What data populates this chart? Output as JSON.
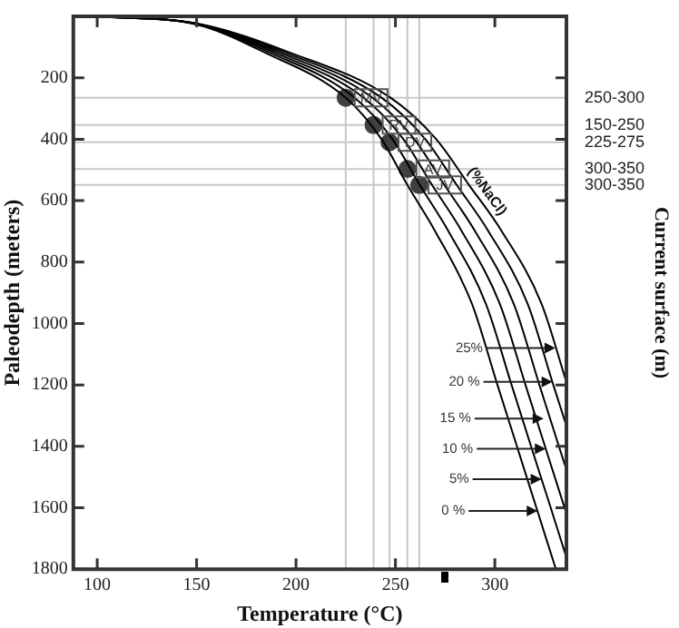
{
  "chart_data": {
    "type": "line",
    "xlabel": "Temperature (°C)",
    "ylabel": "Paleodepth (meters)",
    "y2label": "Current surface (m)",
    "xlim": [
      88,
      336
    ],
    "ylim": [
      1800,
      0
    ],
    "xticks": [
      100,
      150,
      200,
      250,
      300
    ],
    "yticks": [
      200,
      400,
      600,
      800,
      1000,
      1200,
      1400,
      1600,
      1800
    ],
    "grid": false,
    "legend": false,
    "marker": "none",
    "line_style": "solid",
    "series": [
      {
        "color": "#000000",
        "x": [
          100,
          149,
          184,
          225,
          243,
          256,
          270,
          288.5,
          301.3,
          311.1,
          320.9,
          330.7
        ],
        "values": [
          0,
          25,
          117,
          265,
          400,
          549,
          700,
          936,
          1200,
          1400,
          1600,
          1800
        ]
      },
      {
        "color": "#000000",
        "x": [
          100,
          149.5,
          186.5,
          229.5,
          248.5,
          262.2,
          276.7,
          295.5,
          308.4,
          318.2,
          328.1,
          336
        ],
        "values": [
          0,
          25,
          117,
          265,
          400,
          549,
          700,
          936,
          1200,
          1400,
          1600,
          1762
        ]
      },
      {
        "color": "#000000",
        "x": [
          100,
          150,
          189,
          234,
          254,
          268.4,
          283.4,
          302.5,
          315.4,
          325.2,
          336
        ],
        "values": [
          0,
          25,
          117,
          265,
          400,
          549,
          700,
          936,
          1200,
          1400,
          1619
        ]
      },
      {
        "color": "#000000",
        "x": [
          100,
          150.5,
          191.5,
          238.5,
          259.5,
          274.6,
          290.1,
          309.5,
          322.4,
          332.2,
          336
        ],
        "values": [
          0,
          25,
          117,
          265,
          400,
          549,
          700,
          936,
          1200,
          1400,
          1476
        ]
      },
      {
        "color": "#000000",
        "x": [
          100,
          151,
          194,
          243,
          265,
          280.8,
          296.8,
          316.5,
          329.4,
          336
        ],
        "values": [
          0,
          25,
          117,
          265,
          400,
          549,
          700,
          936,
          1200,
          1333
        ]
      },
      {
        "color": "#000000",
        "x": [
          100,
          151.5,
          196.5,
          247.5,
          270.5,
          287,
          303.5,
          323.5,
          336
        ],
        "values": [
          0,
          25,
          117,
          265,
          400,
          549,
          700,
          936,
          1191
        ]
      },
      {
        "type": "scatter",
        "marker": "circle",
        "name": "MV",
        "color": "#404040",
        "x": [
          225
        ],
        "values": [
          265
        ]
      },
      {
        "type": "scatter",
        "marker": "circle",
        "name": "RV",
        "color": "#404040",
        "x": [
          239
        ],
        "values": [
          354
        ]
      },
      {
        "type": "scatter",
        "marker": "circle",
        "name": "DV",
        "color": "#404040",
        "x": [
          247
        ],
        "values": [
          410
        ]
      },
      {
        "type": "scatter",
        "marker": "circle",
        "name": "AV",
        "color": "#404040",
        "x": [
          256
        ],
        "values": [
          497
        ]
      },
      {
        "type": "scatter",
        "marker": "circle",
        "name": "JV",
        "color": "#404040",
        "x": [
          262
        ],
        "values": [
          549
        ]
      }
    ],
    "ref_lines": [
      {
        "axis": "x",
        "value": 225,
        "color": "#c8c8c8"
      },
      {
        "axis": "x",
        "value": 239,
        "color": "#c8c8c8"
      },
      {
        "axis": "x",
        "value": 247,
        "color": "#c8c8c8"
      },
      {
        "axis": "x",
        "value": 256,
        "color": "#c8c8c8"
      },
      {
        "axis": "x",
        "value": 262,
        "color": "#c8c8c8"
      },
      {
        "axis": "y",
        "value": 265,
        "color": "#c8c8c8"
      },
      {
        "axis": "y",
        "value": 354,
        "color": "#c8c8c8"
      },
      {
        "axis": "y",
        "value": 410,
        "color": "#c8c8c8"
      },
      {
        "axis": "y",
        "value": 497,
        "color": "#c8c8c8"
      },
      {
        "axis": "y",
        "value": 549,
        "color": "#c8c8c8"
      }
    ],
    "annotations": [
      "(%NaCl)",
      {
        "text": "25%",
        "x": 330.5,
        "y": 1080
      },
      {
        "text": "20 %",
        "x": 329,
        "y": 1190
      },
      {
        "text": "15 %",
        "x": 324.5,
        "y": 1310
      },
      {
        "text": "10 %",
        "x": 325.6,
        "y": 1408
      },
      {
        "text": "5%",
        "x": 323.5,
        "y": 1507
      },
      {
        "text": "0 %",
        "x": 321.5,
        "y": 1610
      },
      "250-300",
      "150-250",
      "225-275",
      "300-350",
      "300-350"
    ]
  }
}
